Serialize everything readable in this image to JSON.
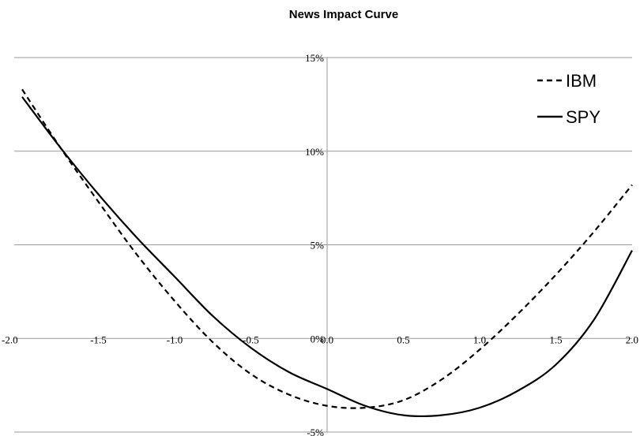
{
  "chart_data": {
    "type": "line",
    "title": "News Impact Curve",
    "xlabel": "",
    "ylabel": "",
    "xlim": [
      -2.0,
      2.0
    ],
    "ylim": [
      -5,
      15
    ],
    "x_ticks": [
      "-2.0",
      "-1.5",
      "-1.0",
      "-0.5",
      "0.0",
      "0.5",
      "1.0",
      "1.5",
      "2.0"
    ],
    "y_ticks": [
      "15%",
      "10%",
      "5%",
      "0%",
      "-5%"
    ],
    "grid": "horizontal",
    "legend": "top-right",
    "series": [
      {
        "name": "IBM",
        "style": "dashed",
        "color": "#000000",
        "x": [
          -2.0,
          -1.75,
          -1.5,
          -1.25,
          -1.0,
          -0.75,
          -0.5,
          -0.25,
          0.0,
          0.25,
          0.5,
          0.75,
          1.0,
          1.25,
          1.5,
          1.75,
          2.0
        ],
        "values": [
          13.3,
          10.2,
          7.3,
          4.5,
          2.0,
          -0.2,
          -1.9,
          -3.0,
          -3.6,
          -3.7,
          -3.3,
          -2.2,
          -0.6,
          1.3,
          3.4,
          5.7,
          8.2
        ]
      },
      {
        "name": "SPY",
        "style": "solid",
        "color": "#000000",
        "x": [
          -2.0,
          -1.75,
          -1.5,
          -1.25,
          -1.0,
          -0.75,
          -0.5,
          -0.25,
          0.0,
          0.25,
          0.5,
          0.75,
          1.0,
          1.25,
          1.5,
          1.75,
          2.0
        ],
        "values": [
          12.9,
          10.2,
          7.7,
          5.4,
          3.3,
          1.2,
          -0.5,
          -1.8,
          -2.7,
          -3.6,
          -4.1,
          -4.1,
          -3.7,
          -2.8,
          -1.4,
          1.0,
          4.7
        ]
      }
    ]
  }
}
